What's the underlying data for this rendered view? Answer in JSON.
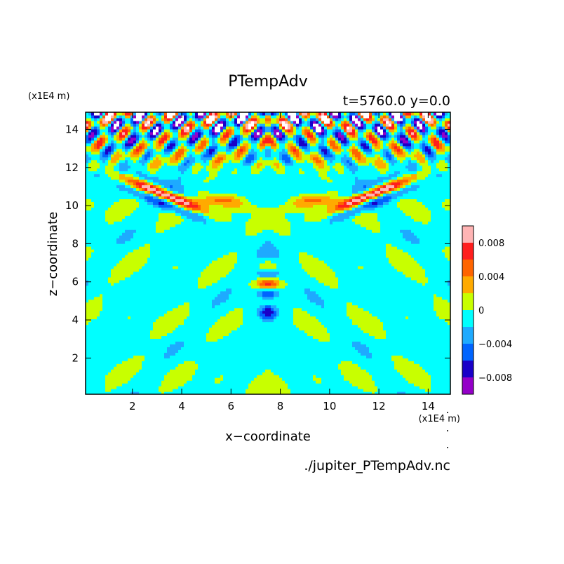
{
  "chart_data": {
    "type": "heatmap",
    "title": "PTempAdv",
    "subtitle": "t=5760.0 y=0.0",
    "xlabel": "x−coordinate",
    "ylabel": "z−coordinate",
    "x_unit": "(x1E4 m)",
    "z_unit": "(x1E4 m)",
    "source_file": "./jupiter_PTempAdv.nc",
    "xlim": [
      0.1,
      14.9
    ],
    "ylim": [
      0.1,
      14.9
    ],
    "xticks": [
      2,
      4,
      6,
      8,
      10,
      12,
      14
    ],
    "yticks": [
      2,
      4,
      6,
      8,
      10,
      12,
      14
    ],
    "colorbar": {
      "levels": [
        -0.01,
        -0.008,
        -0.006,
        -0.004,
        -0.002,
        0,
        0.002,
        0.004,
        0.006,
        0.008,
        0.01
      ],
      "colors": [
        "#9400c8",
        "#1a00c8",
        "#0064ff",
        "#1eaaff",
        "#00ffff",
        "#c8ff00",
        "#ffaa00",
        "#ff6400",
        "#ff1e1e",
        "#ffb4b4"
      ],
      "tick_values": [
        -0.008,
        -0.004,
        0,
        0.004,
        0.008
      ],
      "tick_labels": [
        "−0.008",
        "−0.004",
        "0",
        "0.004",
        "0.008"
      ]
    },
    "field_pattern": "mirror-symmetric about x=7.5; strong alternating positive/negative anomalies above z=12, arc-shaped positive bands near z=9–10.5, weak mostly-zero/slightly-negative values below z=8"
  }
}
